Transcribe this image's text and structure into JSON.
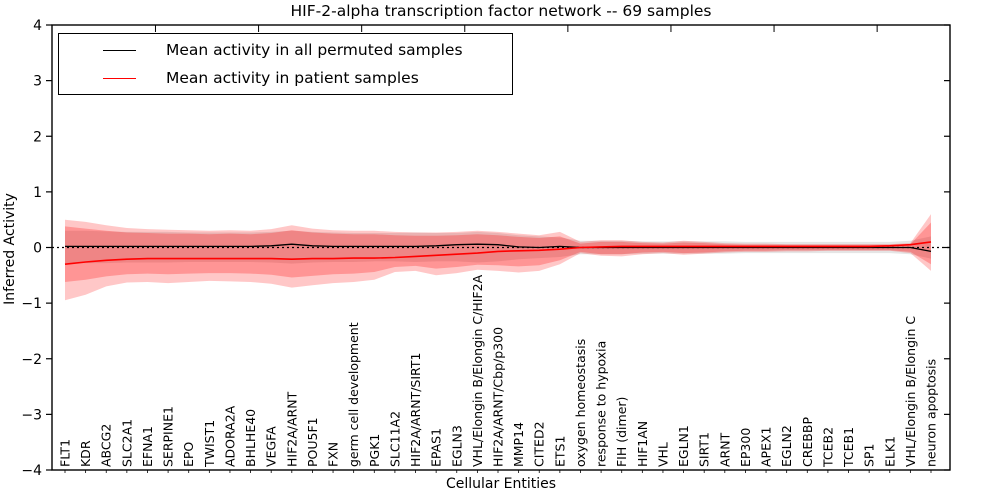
{
  "chart_data": {
    "type": "line",
    "title": "HIF-2-alpha transcription factor network -- 69 samples",
    "xlabel": "Cellular Entities",
    "ylabel": "Inferred Activity",
    "ylim": [
      -4,
      4
    ],
    "yticks": [
      4,
      3,
      2,
      1,
      0,
      -1,
      -2,
      -3,
      -4
    ],
    "grid": false,
    "legend_position": "upper left",
    "zero_reference_line": true,
    "colors": {
      "permuted_line": "#000000",
      "patient_line": "#ff0000",
      "permuted_band": "rgba(0,0,0,0.10)",
      "patient_band": "rgba(255,0,0,0.22)",
      "patient_band_inner": "rgba(255,0,0,0.25)"
    },
    "categories": [
      "FLT1",
      "KDR",
      "ABCG2",
      "SLC2A1",
      "EFNA1",
      "SERPINE1",
      "EPO",
      "TWIST1",
      "ADORA2A",
      "BHLHE40",
      "VEGFA",
      "HIF2A/ARNT",
      "POU5F1",
      "FXN",
      "germ cell development",
      "PGK1",
      "SLC11A2",
      "HIF2A/ARNT/SIRT1",
      "EPAS1",
      "EGLN3",
      "VHL/Elongin B/Elongin C/HIF2A",
      "HIF2A/ARNT/Cbp/p300",
      "MMP14",
      "CITED2",
      "ETS1",
      "oxygen homeostasis",
      "response to hypoxia",
      "FIH (dimer)",
      "HIF1AN",
      "VHL",
      "EGLN1",
      "SIRT1",
      "ARNT",
      "EP300",
      "APEX1",
      "EGLN2",
      "CREBBP",
      "TCEB2",
      "TCEB1",
      "SP1",
      "ELK1",
      "VHL/Elongin B/Elongin C",
      "neuron apoptosis"
    ],
    "series": [
      {
        "name": "Mean activity in all permuted samples",
        "color": "#000000",
        "values": [
          0.02,
          0.02,
          0.02,
          0.02,
          0.02,
          0.02,
          0.02,
          0.02,
          0.02,
          0.02,
          0.03,
          0.06,
          0.03,
          0.02,
          0.02,
          0.02,
          0.02,
          0.02,
          0.03,
          0.05,
          0.06,
          0.05,
          0.01,
          0.0,
          0.02,
          0.0,
          0.0,
          0.0,
          0.0,
          0.0,
          0.0,
          0.0,
          0.0,
          0.0,
          0.0,
          0.0,
          0.0,
          0.0,
          0.0,
          0.0,
          0.0,
          0.0,
          -0.07
        ],
        "band_upper": [
          0.3,
          0.3,
          0.29,
          0.28,
          0.28,
          0.28,
          0.27,
          0.27,
          0.27,
          0.27,
          0.28,
          0.3,
          0.28,
          0.27,
          0.26,
          0.26,
          0.26,
          0.27,
          0.26,
          0.26,
          0.28,
          0.26,
          0.22,
          0.2,
          0.18,
          0.12,
          0.12,
          0.12,
          0.11,
          0.11,
          0.11,
          0.11,
          0.11,
          0.1,
          0.1,
          0.1,
          0.1,
          0.1,
          0.1,
          0.1,
          0.1,
          0.12,
          0.2
        ],
        "band_lower": [
          -0.28,
          -0.28,
          -0.28,
          -0.27,
          -0.27,
          -0.27,
          -0.26,
          -0.26,
          -0.26,
          -0.26,
          -0.27,
          -0.29,
          -0.27,
          -0.26,
          -0.26,
          -0.25,
          -0.25,
          -0.26,
          -0.25,
          -0.25,
          -0.27,
          -0.25,
          -0.21,
          -0.19,
          -0.17,
          -0.12,
          -0.12,
          -0.12,
          -0.11,
          -0.11,
          -0.11,
          -0.11,
          -0.11,
          -0.1,
          -0.1,
          -0.1,
          -0.1,
          -0.1,
          -0.1,
          -0.1,
          -0.1,
          -0.12,
          -0.2
        ]
      },
      {
        "name": "Mean activity in patient samples",
        "color": "#ff0000",
        "values": [
          -0.3,
          -0.26,
          -0.23,
          -0.21,
          -0.2,
          -0.2,
          -0.2,
          -0.2,
          -0.2,
          -0.2,
          -0.2,
          -0.21,
          -0.2,
          -0.2,
          -0.19,
          -0.19,
          -0.18,
          -0.16,
          -0.14,
          -0.12,
          -0.1,
          -0.07,
          -0.06,
          -0.05,
          -0.03,
          0.0,
          0.01,
          0.02,
          0.02,
          0.02,
          0.02,
          0.02,
          0.02,
          0.02,
          0.02,
          0.02,
          0.02,
          0.02,
          0.02,
          0.02,
          0.03,
          0.05,
          0.1
        ],
        "band_upper": [
          0.5,
          0.46,
          0.4,
          0.35,
          0.33,
          0.32,
          0.31,
          0.3,
          0.31,
          0.3,
          0.33,
          0.4,
          0.34,
          0.31,
          0.3,
          0.3,
          0.28,
          0.27,
          0.27,
          0.28,
          0.3,
          0.28,
          0.25,
          0.22,
          0.28,
          0.1,
          0.13,
          0.13,
          0.1,
          0.09,
          0.12,
          0.1,
          0.08,
          0.07,
          0.07,
          0.06,
          0.06,
          0.06,
          0.06,
          0.06,
          0.06,
          0.08,
          0.6
        ],
        "band_lower": [
          -0.95,
          -0.85,
          -0.7,
          -0.63,
          -0.62,
          -0.64,
          -0.62,
          -0.6,
          -0.61,
          -0.62,
          -0.65,
          -0.72,
          -0.68,
          -0.64,
          -0.62,
          -0.58,
          -0.44,
          -0.42,
          -0.5,
          -0.46,
          -0.4,
          -0.42,
          -0.45,
          -0.42,
          -0.3,
          -0.1,
          -0.15,
          -0.16,
          -0.12,
          -0.1,
          -0.13,
          -0.11,
          -0.09,
          -0.08,
          -0.08,
          -0.07,
          -0.07,
          -0.06,
          -0.06,
          -0.06,
          -0.06,
          -0.1,
          -0.42
        ],
        "inner_band_upper": [
          0.38,
          0.34,
          0.3,
          0.27,
          0.26,
          0.25,
          0.25,
          0.24,
          0.25,
          0.24,
          0.26,
          0.31,
          0.27,
          0.25,
          0.24,
          0.24,
          0.22,
          0.21,
          0.21,
          0.22,
          0.24,
          0.22,
          0.19,
          0.17,
          0.2,
          0.07,
          0.1,
          0.1,
          0.08,
          0.07,
          0.09,
          0.08,
          0.06,
          0.05,
          0.05,
          0.05,
          0.05,
          0.05,
          0.05,
          0.05,
          0.05,
          0.06,
          0.45
        ],
        "inner_band_lower": [
          -0.62,
          -0.58,
          -0.52,
          -0.48,
          -0.47,
          -0.48,
          -0.47,
          -0.46,
          -0.46,
          -0.47,
          -0.49,
          -0.54,
          -0.51,
          -0.48,
          -0.47,
          -0.44,
          -0.35,
          -0.33,
          -0.38,
          -0.35,
          -0.31,
          -0.32,
          -0.34,
          -0.32,
          -0.23,
          -0.08,
          -0.12,
          -0.12,
          -0.09,
          -0.08,
          -0.1,
          -0.09,
          -0.07,
          -0.06,
          -0.06,
          -0.05,
          -0.05,
          -0.05,
          -0.05,
          -0.05,
          -0.05,
          -0.08,
          -0.3
        ]
      }
    ]
  }
}
